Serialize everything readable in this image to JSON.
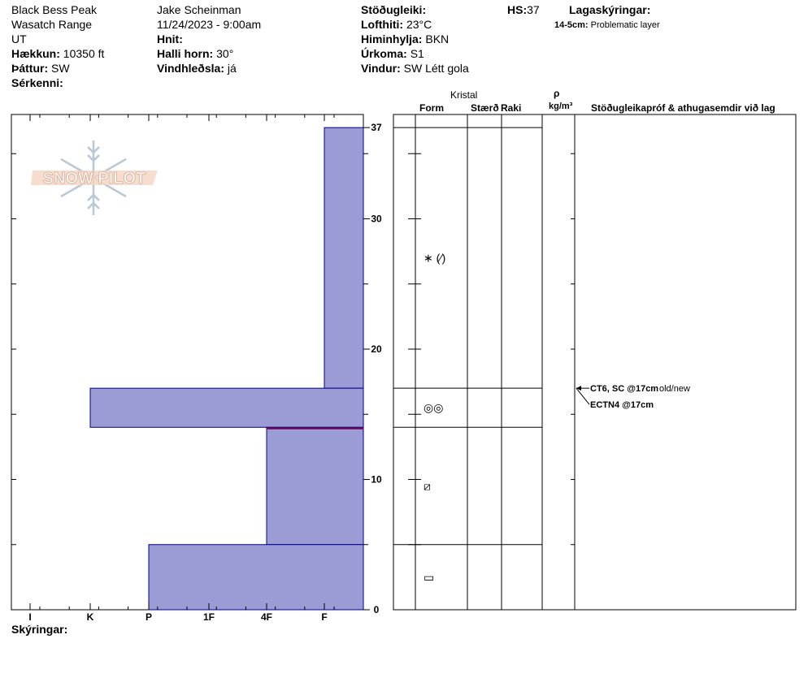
{
  "header": {
    "location": "Black Bess Peak",
    "range": "Wasatch Range",
    "state": "UT",
    "elevation_label": "Hækkun:",
    "elevation": "10350 ft",
    "aspect_label": "Þáttur:",
    "aspect": "SW",
    "features_label": "Sérkenni:",
    "observer": "Jake Scheinman",
    "datetime": "11/24/2023 - 9:00am",
    "coords_label": "Hnit:",
    "slope_label": "Halli horn:",
    "slope": "30°",
    "wind_loading_label": "Vindhleðsla:",
    "wind_loading": "já",
    "stability_label": "Stöðugleiki:",
    "air_temp_label": "Lofthiti:",
    "air_temp": "23°C",
    "sky_label": "Himinhylja:",
    "sky": "BKN",
    "precip_label": "Úrkoma:",
    "precip": "S1",
    "wind_label": "Vindur:",
    "wind": "SW Létt gola",
    "hs_label": "HS:",
    "hs": "37",
    "layer_notes_label": "Lagaskýringar:",
    "layer_note_depth": "14-5cm:",
    "layer_note_text": "Problematic layer"
  },
  "table_headers": {
    "crystal": "Kristal",
    "form": "Form",
    "size": "Stærð",
    "moisture": "Raki",
    "rho": "ρ",
    "density_unit": "kg/m³",
    "tests": "Stöðugleikapróf & athugasemdir við lag"
  },
  "footer": {
    "notes_label": "Skýringar:"
  },
  "logo": {
    "text": "SNOW PILOT"
  },
  "colors": {
    "bar_fill": "#9b9bd6",
    "bar_stroke": "#00008b",
    "problem_line": "#800040"
  },
  "chart_data": {
    "type": "bar",
    "orientation": "horizontal",
    "description_axis": "hardness",
    "hardness_scale": [
      "I",
      "K",
      "P",
      "1F",
      "4F",
      "F"
    ],
    "y_ticks": [
      0,
      10,
      20,
      30,
      37
    ],
    "ylim": [
      0,
      37
    ],
    "layers": [
      {
        "top": 37,
        "bottom": 17,
        "hardness": "F",
        "hardness_value": 5,
        "grain_form": "∗ (⁄)"
      },
      {
        "top": 17,
        "bottom": 14,
        "hardness": "K",
        "hardness_value": 1,
        "grain_form": "◎◎"
      },
      {
        "top": 14,
        "bottom": 5,
        "hardness": "4F",
        "hardness_value": 4,
        "grain_form": "⧄"
      },
      {
        "top": 5,
        "bottom": 0,
        "hardness": "P",
        "hardness_value": 2,
        "grain_form": "▭"
      }
    ],
    "problem_layer_depth": 14,
    "tests": [
      {
        "depth": 17,
        "label": "CT6, SC @17cm",
        "note": "old/new"
      },
      {
        "depth": 17,
        "label": "ECTN4 @17cm",
        "note": ""
      }
    ]
  }
}
